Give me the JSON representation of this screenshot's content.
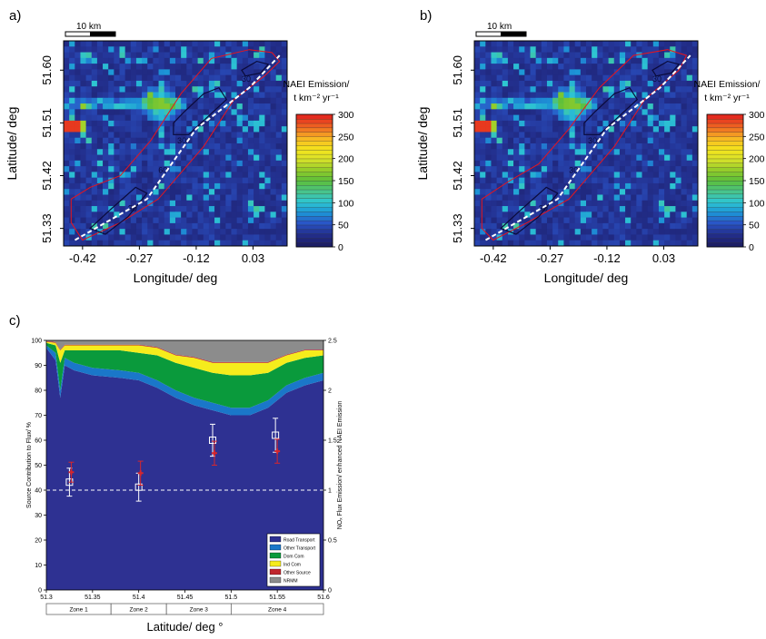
{
  "chart_data": [
    {
      "panel_label": "a)",
      "type": "heatmap",
      "xlabel": "Longitude/ deg",
      "ylabel": "Latitude/ deg",
      "x_ticks": [
        "-0.42",
        "-0.27",
        "-0.12",
        "0.03"
      ],
      "y_ticks": [
        "51.33",
        "51.42",
        "51.51",
        "51.60"
      ],
      "x_tick_values": [
        -0.42,
        -0.27,
        -0.12,
        0.03
      ],
      "y_tick_values": [
        51.33,
        51.42,
        51.51,
        51.6
      ],
      "xlim": [
        -0.47,
        0.12
      ],
      "ylim": [
        51.3,
        51.65
      ],
      "scalebar_label": "10 km",
      "colorbar": {
        "title_line1": "NAEI Emission/",
        "title_line2": "t km⁻² yr⁻¹",
        "ticks": [
          0,
          50,
          100,
          150,
          200,
          250,
          300
        ],
        "range": [
          0,
          300
        ]
      },
      "contour_labels": [
        "30",
        "30",
        "30",
        "60"
      ],
      "colors": {
        "background": "#2a3f99",
        "flight_track": "#ffffff",
        "footprint_outline": "#e8141c",
        "contour": "#0a0a3a"
      }
    },
    {
      "panel_label": "b)",
      "type": "heatmap",
      "xlabel": "Longitude/ deg",
      "ylabel": "Latitude/ deg",
      "x_ticks": [
        "-0.42",
        "-0.27",
        "-0.12",
        "0.03"
      ],
      "y_ticks": [
        "51.33",
        "51.42",
        "51.51",
        "51.60"
      ],
      "x_tick_values": [
        -0.42,
        -0.27,
        -0.12,
        0.03
      ],
      "y_tick_values": [
        51.33,
        51.42,
        51.51,
        51.6
      ],
      "xlim": [
        -0.47,
        0.12
      ],
      "ylim": [
        51.3,
        51.65
      ],
      "scalebar_label": "10 km",
      "colorbar": {
        "title_line1": "NAEI Emission/",
        "title_line2": "t km⁻² yr⁻¹",
        "ticks": [
          0,
          50,
          100,
          150,
          200,
          250,
          300
        ],
        "range": [
          0,
          300
        ]
      },
      "contour_labels": [
        "30",
        "30",
        "30",
        "30"
      ],
      "colors": {
        "background": "#2a3f99",
        "flight_track": "#ffffff",
        "footprint_outline": "#e8141c",
        "contour": "#0a0a3a"
      }
    },
    {
      "panel_label": "c)",
      "type": "area",
      "xlabel": "Latitude/ deg °",
      "ylabel": "Source Contribution to Flux/ %",
      "y2label": "NOₓ Flux Emission/ enhanced NAEI Emission",
      "xlim": [
        51.3,
        51.6
      ],
      "ylim": [
        0,
        100
      ],
      "y2lim": [
        0,
        2.5
      ],
      "x_ticks": [
        "51.3",
        "51.35",
        "51.4",
        "51.45",
        "51.5",
        "51.55",
        "51.6"
      ],
      "y_ticks": [
        "0",
        "10",
        "20",
        "30",
        "40",
        "50",
        "60",
        "70",
        "80",
        "90",
        "100"
      ],
      "y2_ticks": [
        "0",
        "0.5",
        "1",
        "1.5",
        "2",
        "2.5"
      ],
      "x": [
        51.3,
        51.31,
        51.315,
        51.32,
        51.325,
        51.33,
        51.35,
        51.38,
        51.4,
        51.42,
        51.44,
        51.46,
        51.48,
        51.5,
        51.52,
        51.54,
        51.56,
        51.58,
        51.6
      ],
      "series": [
        {
          "name": "Road Transport",
          "color": "#2e3192",
          "values": [
            97,
            92,
            77,
            90,
            89,
            88,
            86,
            85,
            84,
            81,
            77,
            74,
            72,
            70,
            70,
            73,
            79,
            82,
            84
          ]
        },
        {
          "name": "Other Transport",
          "color": "#1a77c9",
          "values": [
            1,
            3,
            3,
            3,
            3,
            3,
            3,
            3,
            3,
            3,
            3,
            3,
            3,
            3,
            3,
            3,
            3,
            3,
            3
          ]
        },
        {
          "name": "Dom Com",
          "color": "#0a9a3c",
          "values": [
            1,
            3,
            11,
            3,
            4,
            5,
            7,
            8,
            8,
            10,
            11,
            12,
            12,
            13,
            13,
            11,
            9,
            8,
            7
          ]
        },
        {
          "name": "Ind Com",
          "color": "#f5ec1c",
          "values": [
            0.5,
            1,
            5,
            2,
            2,
            2,
            2,
            2,
            3,
            3,
            3,
            4,
            4,
            5,
            5,
            4,
            3,
            3,
            2
          ]
        },
        {
          "name": "Other Source",
          "color": "#c0262d",
          "values": [
            0.2,
            0.3,
            0.3,
            0.3,
            0.3,
            0.3,
            0.3,
            0.3,
            0.3,
            0.3,
            0.3,
            0.3,
            0.3,
            0.3,
            0.3,
            0.3,
            0.3,
            0.3,
            0.3
          ]
        },
        {
          "name": "NRMM",
          "color": "#8c8c8c",
          "values": [
            0.3,
            0.7,
            3.7,
            1.7,
            1.7,
            1.7,
            1.7,
            1.7,
            1.7,
            2.7,
            5.7,
            6.7,
            8.7,
            8.7,
            8.7,
            8.7,
            5.7,
            3.7,
            3.7
          ]
        }
      ],
      "points": [
        {
          "name": "open_squares",
          "color": "#ffffff",
          "x": [
            51.325,
            51.4,
            51.48,
            51.548
          ],
          "y": [
            1.08,
            1.03,
            1.5,
            1.55
          ],
          "yerr": [
            0.14,
            0.14,
            0.16,
            0.17
          ]
        },
        {
          "name": "red_markers",
          "color": "#d7262c",
          "x": [
            51.325,
            51.4,
            51.48,
            51.548
          ],
          "y": [
            1.18,
            1.17,
            1.37,
            1.39
          ],
          "yerr": [
            0.1,
            0.12,
            0.12,
            0.12
          ]
        }
      ],
      "reference_line_y2": 1.0,
      "zones": [
        {
          "label": "Zone 1",
          "range": [
            51.3,
            51.37
          ]
        },
        {
          "label": "Zone 2",
          "range": [
            51.37,
            51.43
          ]
        },
        {
          "label": "Zone 3",
          "range": [
            51.43,
            51.5
          ]
        },
        {
          "label": "Zone 4",
          "range": [
            51.5,
            51.6
          ]
        }
      ]
    }
  ]
}
